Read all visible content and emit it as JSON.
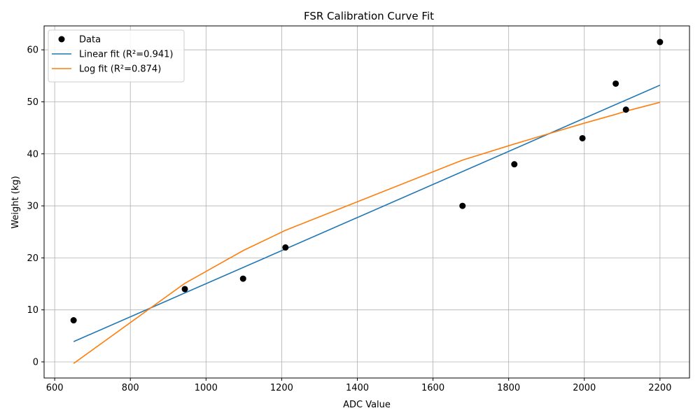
{
  "chart_data": {
    "type": "scatter",
    "title": "FSR Calibration Curve Fit",
    "xlabel": "ADC Value",
    "ylabel": "Weight (kg)",
    "xlim": [
      572,
      2278
    ],
    "ylim": [
      -3.1,
      64.6
    ],
    "xticks": [
      600,
      800,
      1000,
      1200,
      1400,
      1600,
      1800,
      2000,
      2200
    ],
    "yticks": [
      0,
      10,
      20,
      30,
      40,
      50,
      60
    ],
    "grid": true,
    "legend_position": "top-left",
    "series": [
      {
        "name": "Data",
        "kind": "scatter",
        "color": "#000000",
        "x": [
          650,
          944,
          1098,
          1210,
          1678,
          1815,
          1995,
          2083,
          2110,
          2200
        ],
        "y": [
          8,
          14,
          16,
          22,
          30,
          38,
          43,
          53.5,
          48.5,
          61.5
        ]
      },
      {
        "name": "Linear fit (R²=0.941)",
        "kind": "line",
        "color": "#1f77b4",
        "x": [
          650,
          2200
        ],
        "y": [
          3.9,
          53.2
        ]
      },
      {
        "name": "Log fit (R²=0.874)",
        "kind": "line",
        "color": "#ff7f0e",
        "x": [
          650,
          944,
          1098,
          1210,
          1678,
          1815,
          1995,
          2083,
          2110,
          2200
        ],
        "y": [
          -0.3,
          15.1,
          21.4,
          25.3,
          38.8,
          41.9,
          45.8,
          47.6,
          48.2,
          49.9
        ]
      }
    ]
  }
}
